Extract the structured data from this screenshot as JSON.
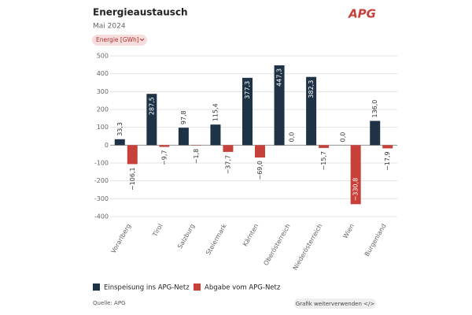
{
  "chart_data": {
    "type": "bar",
    "title": "Energieaustausch",
    "subtitle": "Mai 2024",
    "selector": "Energie [GWh]",
    "logo": "APG",
    "source": "Quelle: APG",
    "share_button": "Grafik weiterverwenden </>",
    "categories": [
      "Vorarlberg",
      "Tirol",
      "Salzburg",
      "Steiermark",
      "Kärnten",
      "Oberösterreich",
      "Niederösterreich",
      "Wien",
      "Burgenland"
    ],
    "series": [
      {
        "name": "Einspeisung ins APG-Netz",
        "color": "#1f3347",
        "values": [
          33.3,
          287.5,
          97.8,
          115.4,
          377.3,
          447.3,
          382.3,
          0.0,
          136.0
        ],
        "value_labels": [
          "33,3",
          "287,5",
          "97,8",
          "115,4",
          "377,3",
          "447,3",
          "382,3",
          "0,0",
          "136,0"
        ]
      },
      {
        "name": "Abgabe vom APG-Netz",
        "color": "#c8403a",
        "values": [
          -106.1,
          -9.7,
          -1.8,
          -37.7,
          -69.0,
          0.0,
          -15.7,
          -330.8,
          -17.9
        ],
        "value_labels": [
          "−106,1",
          "−9,7",
          "−1,8",
          "−37,7",
          "−69,0",
          "0,0",
          "−15,7",
          "−330,8",
          "−17,9"
        ]
      }
    ],
    "ylim": [
      -400,
      500
    ],
    "yticks": [
      -400,
      -300,
      -200,
      -100,
      0,
      100,
      200,
      300,
      400,
      500
    ],
    "grid": true
  }
}
